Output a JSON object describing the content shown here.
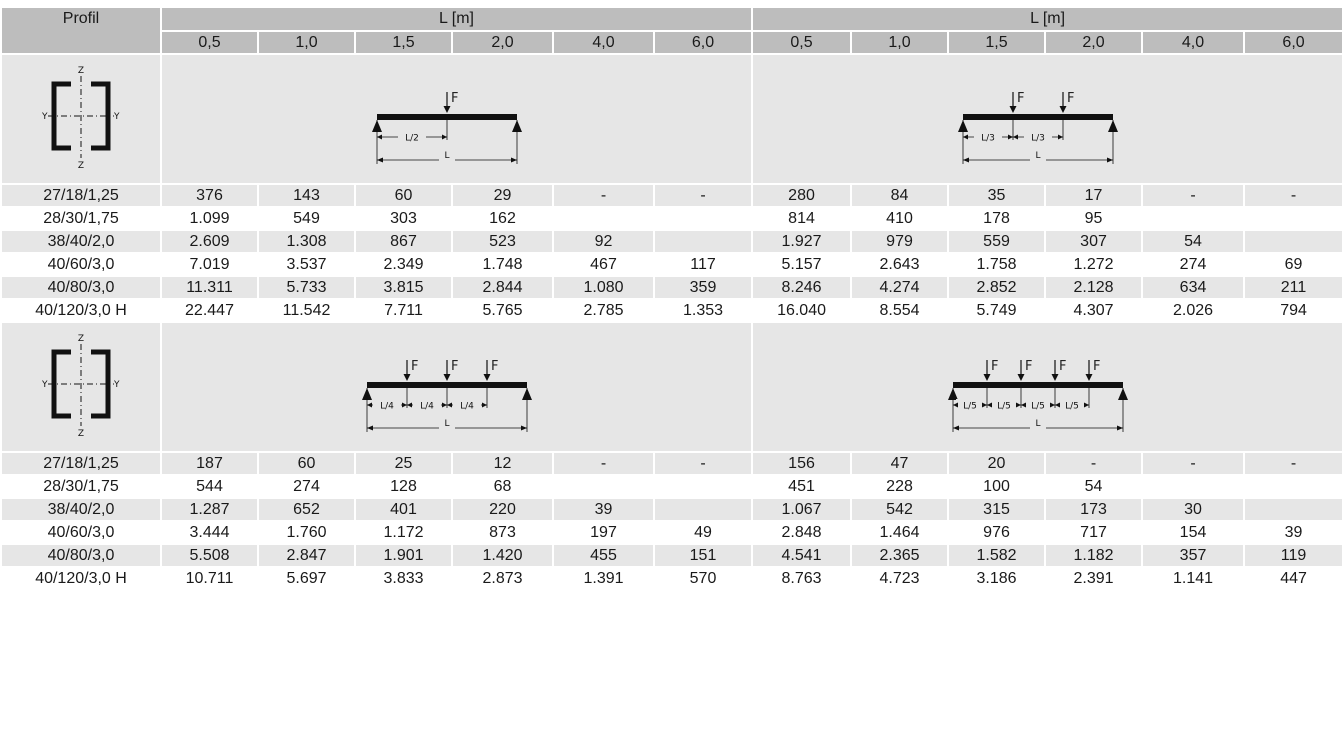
{
  "header": {
    "profil": "Profil",
    "group_left": "L [m]",
    "group_right": "L [m]",
    "lengths_left": [
      "0,5",
      "1,0",
      "1,5",
      "2,0",
      "4,0",
      "6,0"
    ],
    "lengths_right": [
      "0,5",
      "1,0",
      "1,5",
      "2,0",
      "4,0",
      "6,0"
    ]
  },
  "diagram_labels": {
    "force": "F",
    "axis_z": "Z",
    "axis_y": "Y",
    "half": "L/2",
    "third": "L/3",
    "quarter": "L/4",
    "fifth": "L/5",
    "span": "L"
  },
  "section1": {
    "rows": [
      {
        "profile": "27/18/1,25",
        "left": [
          "376",
          "143",
          "60",
          "29",
          "-",
          "-"
        ],
        "right": [
          "280",
          "84",
          "35",
          "17",
          "-",
          "-"
        ]
      },
      {
        "profile": "28/30/1,75",
        "left": [
          "1.099",
          "549",
          "303",
          "162",
          "",
          ""
        ],
        "right": [
          "814",
          "410",
          "178",
          "95",
          "",
          ""
        ]
      },
      {
        "profile": "38/40/2,0",
        "left": [
          "2.609",
          "1.308",
          "867",
          "523",
          "92",
          ""
        ],
        "right": [
          "1.927",
          "979",
          "559",
          "307",
          "54",
          ""
        ]
      },
      {
        "profile": "40/60/3,0",
        "left": [
          "7.019",
          "3.537",
          "2.349",
          "1.748",
          "467",
          "117"
        ],
        "right": [
          "5.157",
          "2.643",
          "1.758",
          "1.272",
          "274",
          "69"
        ]
      },
      {
        "profile": "40/80/3,0",
        "left": [
          "11.311",
          "5.733",
          "3.815",
          "2.844",
          "1.080",
          "359"
        ],
        "right": [
          "8.246",
          "4.274",
          "2.852",
          "2.128",
          "634",
          "211"
        ]
      },
      {
        "profile": "40/120/3,0 H",
        "left": [
          "22.447",
          "11.542",
          "7.711",
          "5.765",
          "2.785",
          "1.353"
        ],
        "right": [
          "16.040",
          "8.554",
          "5.749",
          "4.307",
          "2.026",
          "794"
        ]
      }
    ]
  },
  "section2": {
    "rows": [
      {
        "profile": "27/18/1,25",
        "left": [
          "187",
          "60",
          "25",
          "12",
          "-",
          "-"
        ],
        "right": [
          "156",
          "47",
          "20",
          "-",
          "-",
          "-"
        ]
      },
      {
        "profile": "28/30/1,75",
        "left": [
          "544",
          "274",
          "128",
          "68",
          "",
          ""
        ],
        "right": [
          "451",
          "228",
          "100",
          "54",
          "",
          ""
        ]
      },
      {
        "profile": "38/40/2,0",
        "left": [
          "1.287",
          "652",
          "401",
          "220",
          "39",
          ""
        ],
        "right": [
          "1.067",
          "542",
          "315",
          "173",
          "30",
          ""
        ]
      },
      {
        "profile": "40/60/3,0",
        "left": [
          "3.444",
          "1.760",
          "1.172",
          "873",
          "197",
          "49"
        ],
        "right": [
          "2.848",
          "1.464",
          "976",
          "717",
          "154",
          "39"
        ]
      },
      {
        "profile": "40/80/3,0",
        "left": [
          "5.508",
          "2.847",
          "1.901",
          "1.420",
          "455",
          "151"
        ],
        "right": [
          "4.541",
          "2.365",
          "1.582",
          "1.182",
          "357",
          "119"
        ]
      },
      {
        "profile": "40/120/3,0 H",
        "left": [
          "10.711",
          "5.697",
          "3.833",
          "2.873",
          "1.391",
          "570"
        ],
        "right": [
          "8.763",
          "4.723",
          "3.186",
          "2.391",
          "1.141",
          "447"
        ]
      }
    ]
  }
}
